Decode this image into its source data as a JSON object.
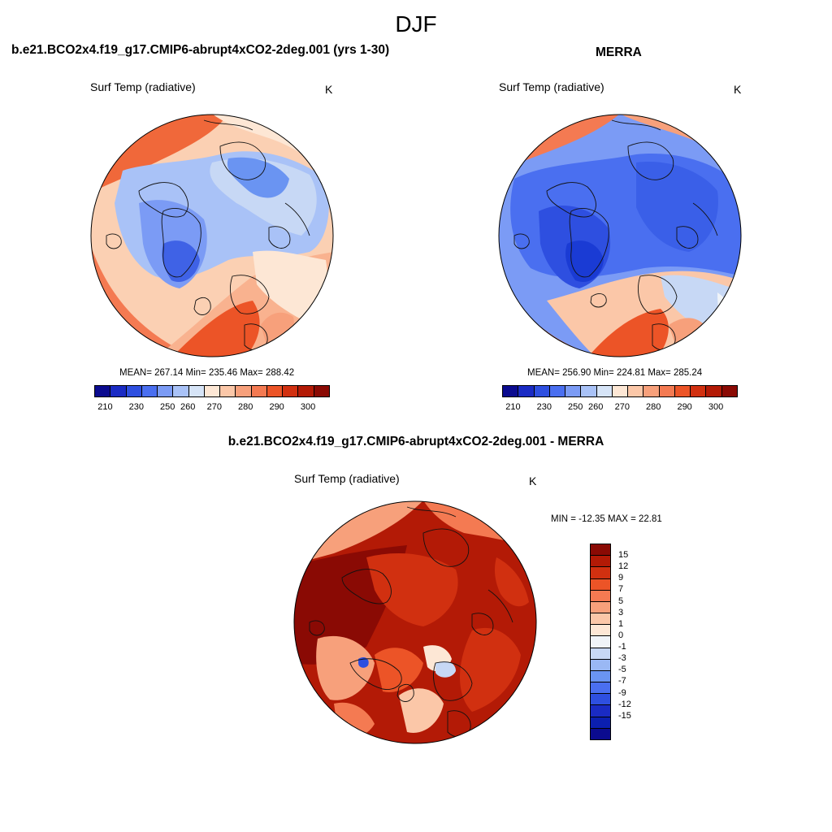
{
  "season": "DJF",
  "panels": {
    "model": {
      "title": "b.e21.BCO2x4.f19_g17.CMIP6-abrupt4xCO2-2deg.001 (yrs 1-30)",
      "label": "Surf Temp (radiative)",
      "units": "K",
      "stats": "MEAN= 267.14  Min= 235.46  Max= 288.42"
    },
    "obs": {
      "title": "MERRA",
      "label": "Surf Temp (radiative)",
      "units": "K",
      "stats": "MEAN= 256.90  Min= 224.81  Max= 285.24"
    },
    "diff": {
      "title": "b.e21.BCO2x4.f19_g17.CMIP6-abrupt4xCO2-2deg.001 - MERRA",
      "label": "Surf Temp (radiative)",
      "units": "K",
      "stats": "MIN = -12.35 MAX =  22.81"
    }
  },
  "colorbars": {
    "abs": {
      "colors": [
        "#0b0b8f",
        "#1a2bc4",
        "#2e4fe0",
        "#4a6ff0",
        "#7b9bf5",
        "#a9c2f7",
        "#d6e4f7",
        "#fde7d5",
        "#fbc7a8",
        "#f7a07b",
        "#f47a52",
        "#ec5427",
        "#d13010",
        "#b31a06",
        "#8a0a04"
      ],
      "tick_labels": [
        "210",
        "230",
        "250",
        "260",
        "270",
        "280",
        "290",
        "300"
      ]
    },
    "diff": {
      "colors": [
        "#8a0a04",
        "#b31a06",
        "#d13010",
        "#ec5427",
        "#f47a52",
        "#f7a07b",
        "#fbc7a8",
        "#fde7d5",
        "#f0f4f8",
        "#c7d8f5",
        "#9ab8f4",
        "#6a94f2",
        "#4a6ff0",
        "#2e4fe0",
        "#1a2bc4",
        "#0b1fb0",
        "#0b0b8f"
      ],
      "tick_labels": [
        "15",
        "12",
        "9",
        "7",
        "5",
        "3",
        "1",
        "0",
        "-1",
        "-3",
        "-5",
        "-7",
        "-9",
        "-12",
        "-15"
      ]
    }
  }
}
